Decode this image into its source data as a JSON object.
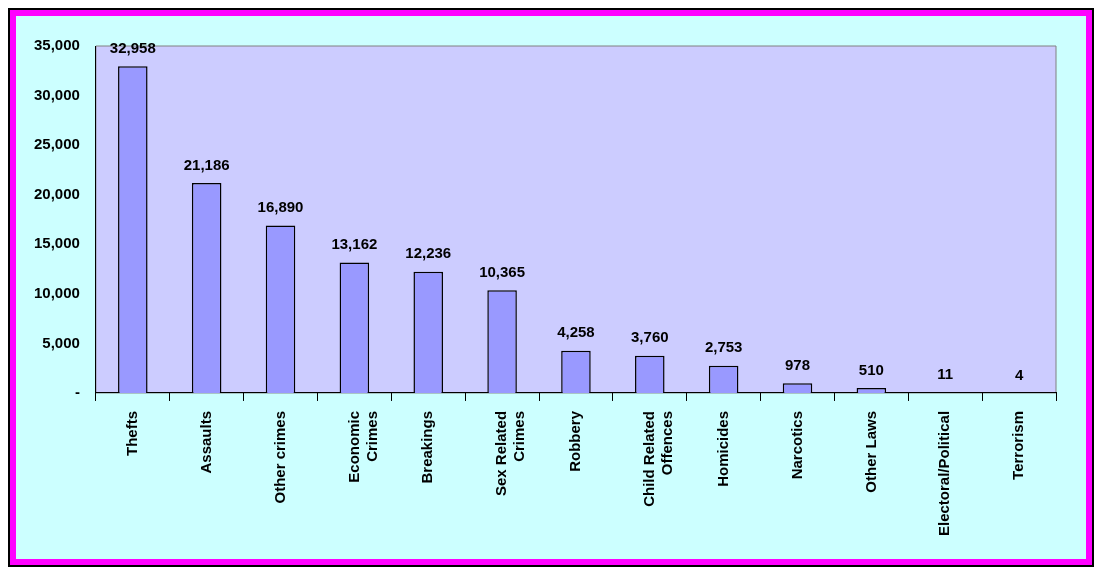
{
  "chart_data": {
    "type": "bar",
    "categories": [
      "Thefts",
      "Assaults",
      "Other crimes",
      "Economic Crimes",
      "Breakings",
      "Sex Related Crimes",
      "Robbery",
      "Child Related Offences",
      "Homicides",
      "Narcotics",
      "Other Laws",
      "Electoral/Political",
      "Terrorism"
    ],
    "values": [
      32958,
      21186,
      16890,
      13162,
      12236,
      10365,
      4258,
      3760,
      2753,
      978,
      510,
      11,
      4
    ],
    "color": "#9999ff",
    "ylim": [
      0,
      35000
    ],
    "yticks": [
      {
        "value": 0,
        "label": "-"
      },
      {
        "value": 5000,
        "label": "5,000"
      },
      {
        "value": 10000,
        "label": "10,000"
      },
      {
        "value": 15000,
        "label": "15,000"
      },
      {
        "value": 20000,
        "label": "20,000"
      },
      {
        "value": 25000,
        "label": "25,000"
      },
      {
        "value": 30000,
        "label": "30,000"
      },
      {
        "value": 35000,
        "label": "35,000"
      }
    ],
    "value_labels": [
      "32,958",
      "21,186",
      "16,890",
      "13,162",
      "12,236",
      "10,365",
      "4,258",
      "3,760",
      "2,753",
      "978",
      "510",
      "11",
      "4"
    ],
    "grid": false,
    "legend": false
  }
}
